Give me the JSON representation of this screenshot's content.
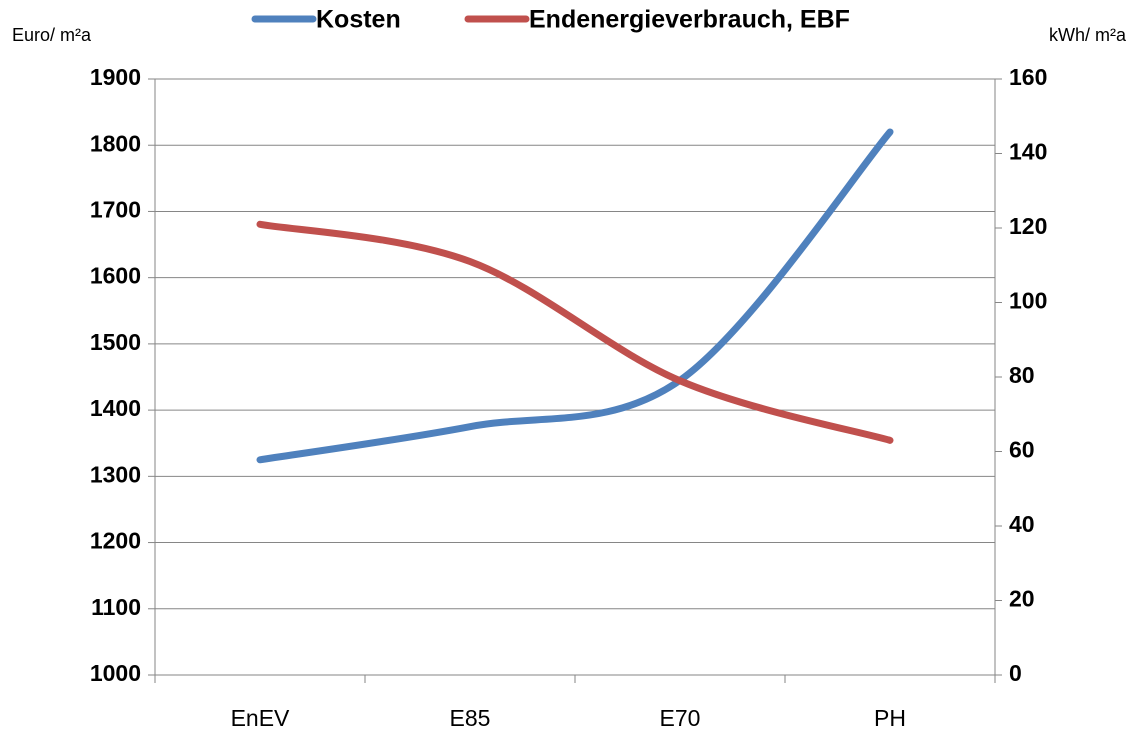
{
  "chart_data": {
    "type": "line",
    "y_label": "Euro/ m²a",
    "y2_label": "kWh/ m²a",
    "categories": [
      "EnEV",
      "E85",
      "E70",
      "PH"
    ],
    "series": [
      {
        "name": "Kosten",
        "color": "#4f81bd",
        "values": [
          1325,
          1375,
          1445,
          1820
        ]
      },
      {
        "name": "Endenergieverbrauch, EBF",
        "color": "#c0504d",
        "axis": "y2",
        "values": [
          121,
          111,
          79,
          63
        ]
      }
    ],
    "ylim": [
      1000,
      1900
    ],
    "yticks": [
      1000,
      1100,
      1200,
      1300,
      1400,
      1500,
      1600,
      1700,
      1800,
      1900
    ],
    "y2lim": [
      0,
      160
    ],
    "y2ticks": [
      0,
      20,
      40,
      60,
      80,
      100,
      120,
      140,
      160
    ],
    "grid": true,
    "smooth": true,
    "legend": "top"
  }
}
